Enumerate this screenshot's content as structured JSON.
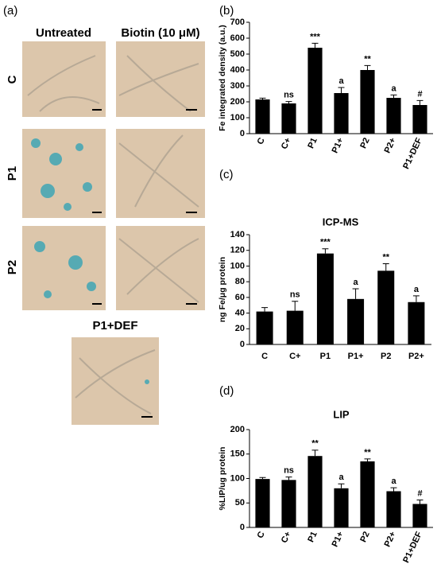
{
  "micrographs": {
    "panel_label": "(a)",
    "columns": [
      "Untreated",
      "Biotin (10 μM)"
    ],
    "rows": [
      "C",
      "P1",
      "P2"
    ],
    "extra": "P1+DEF"
  },
  "chart_data": [
    {
      "type": "bar",
      "panel_label": "(b)",
      "ylabel": "Fe integrated density (a.u.)",
      "color": "#000000",
      "rotate_labels": true,
      "categories": [
        "C",
        "C+",
        "P1",
        "P1+",
        "P2",
        "P2+",
        "P1+DEF"
      ],
      "values": [
        215,
        190,
        540,
        255,
        400,
        225,
        180
      ],
      "errors": [
        8,
        12,
        28,
        35,
        28,
        18,
        28
      ],
      "annotations": [
        null,
        "ns",
        "***",
        "a",
        "**",
        "a",
        "#"
      ],
      "ylim": [
        0,
        700
      ],
      "yticks": [
        0,
        100,
        200,
        300,
        400,
        500,
        600,
        700
      ]
    },
    {
      "type": "bar",
      "panel_label": "(c)",
      "title": "ICP-MS",
      "ylabel": "ng Fe/μg protein",
      "color": "#000000",
      "rotate_labels": false,
      "categories": [
        "C",
        "C+",
        "P1",
        "P1+",
        "P2",
        "P2+"
      ],
      "values": [
        42,
        43,
        116,
        58,
        94,
        54
      ],
      "errors": [
        5,
        12,
        6,
        13,
        9,
        8
      ],
      "annotations": [
        null,
        "ns",
        "***",
        "a",
        "**",
        "a"
      ],
      "ylim": [
        0,
        140
      ],
      "yticks": [
        0,
        20,
        40,
        60,
        80,
        100,
        120,
        140
      ]
    },
    {
      "type": "bar",
      "panel_label": "(d)",
      "title": "LIP",
      "ylabel": "%LIP/ug protein",
      "color": "#000000",
      "rotate_labels": true,
      "categories": [
        "C",
        "C+",
        "P1",
        "P1+",
        "P2",
        "P2+",
        "P1+DEF"
      ],
      "values": [
        99,
        97,
        146,
        80,
        135,
        74,
        48
      ],
      "errors": [
        3,
        6,
        12,
        9,
        5,
        7,
        8
      ],
      "annotations": [
        null,
        "ns",
        "**",
        "a",
        "**",
        "a",
        "#"
      ],
      "ylim": [
        0,
        200
      ],
      "yticks": [
        0,
        50,
        100,
        150,
        200
      ]
    }
  ]
}
